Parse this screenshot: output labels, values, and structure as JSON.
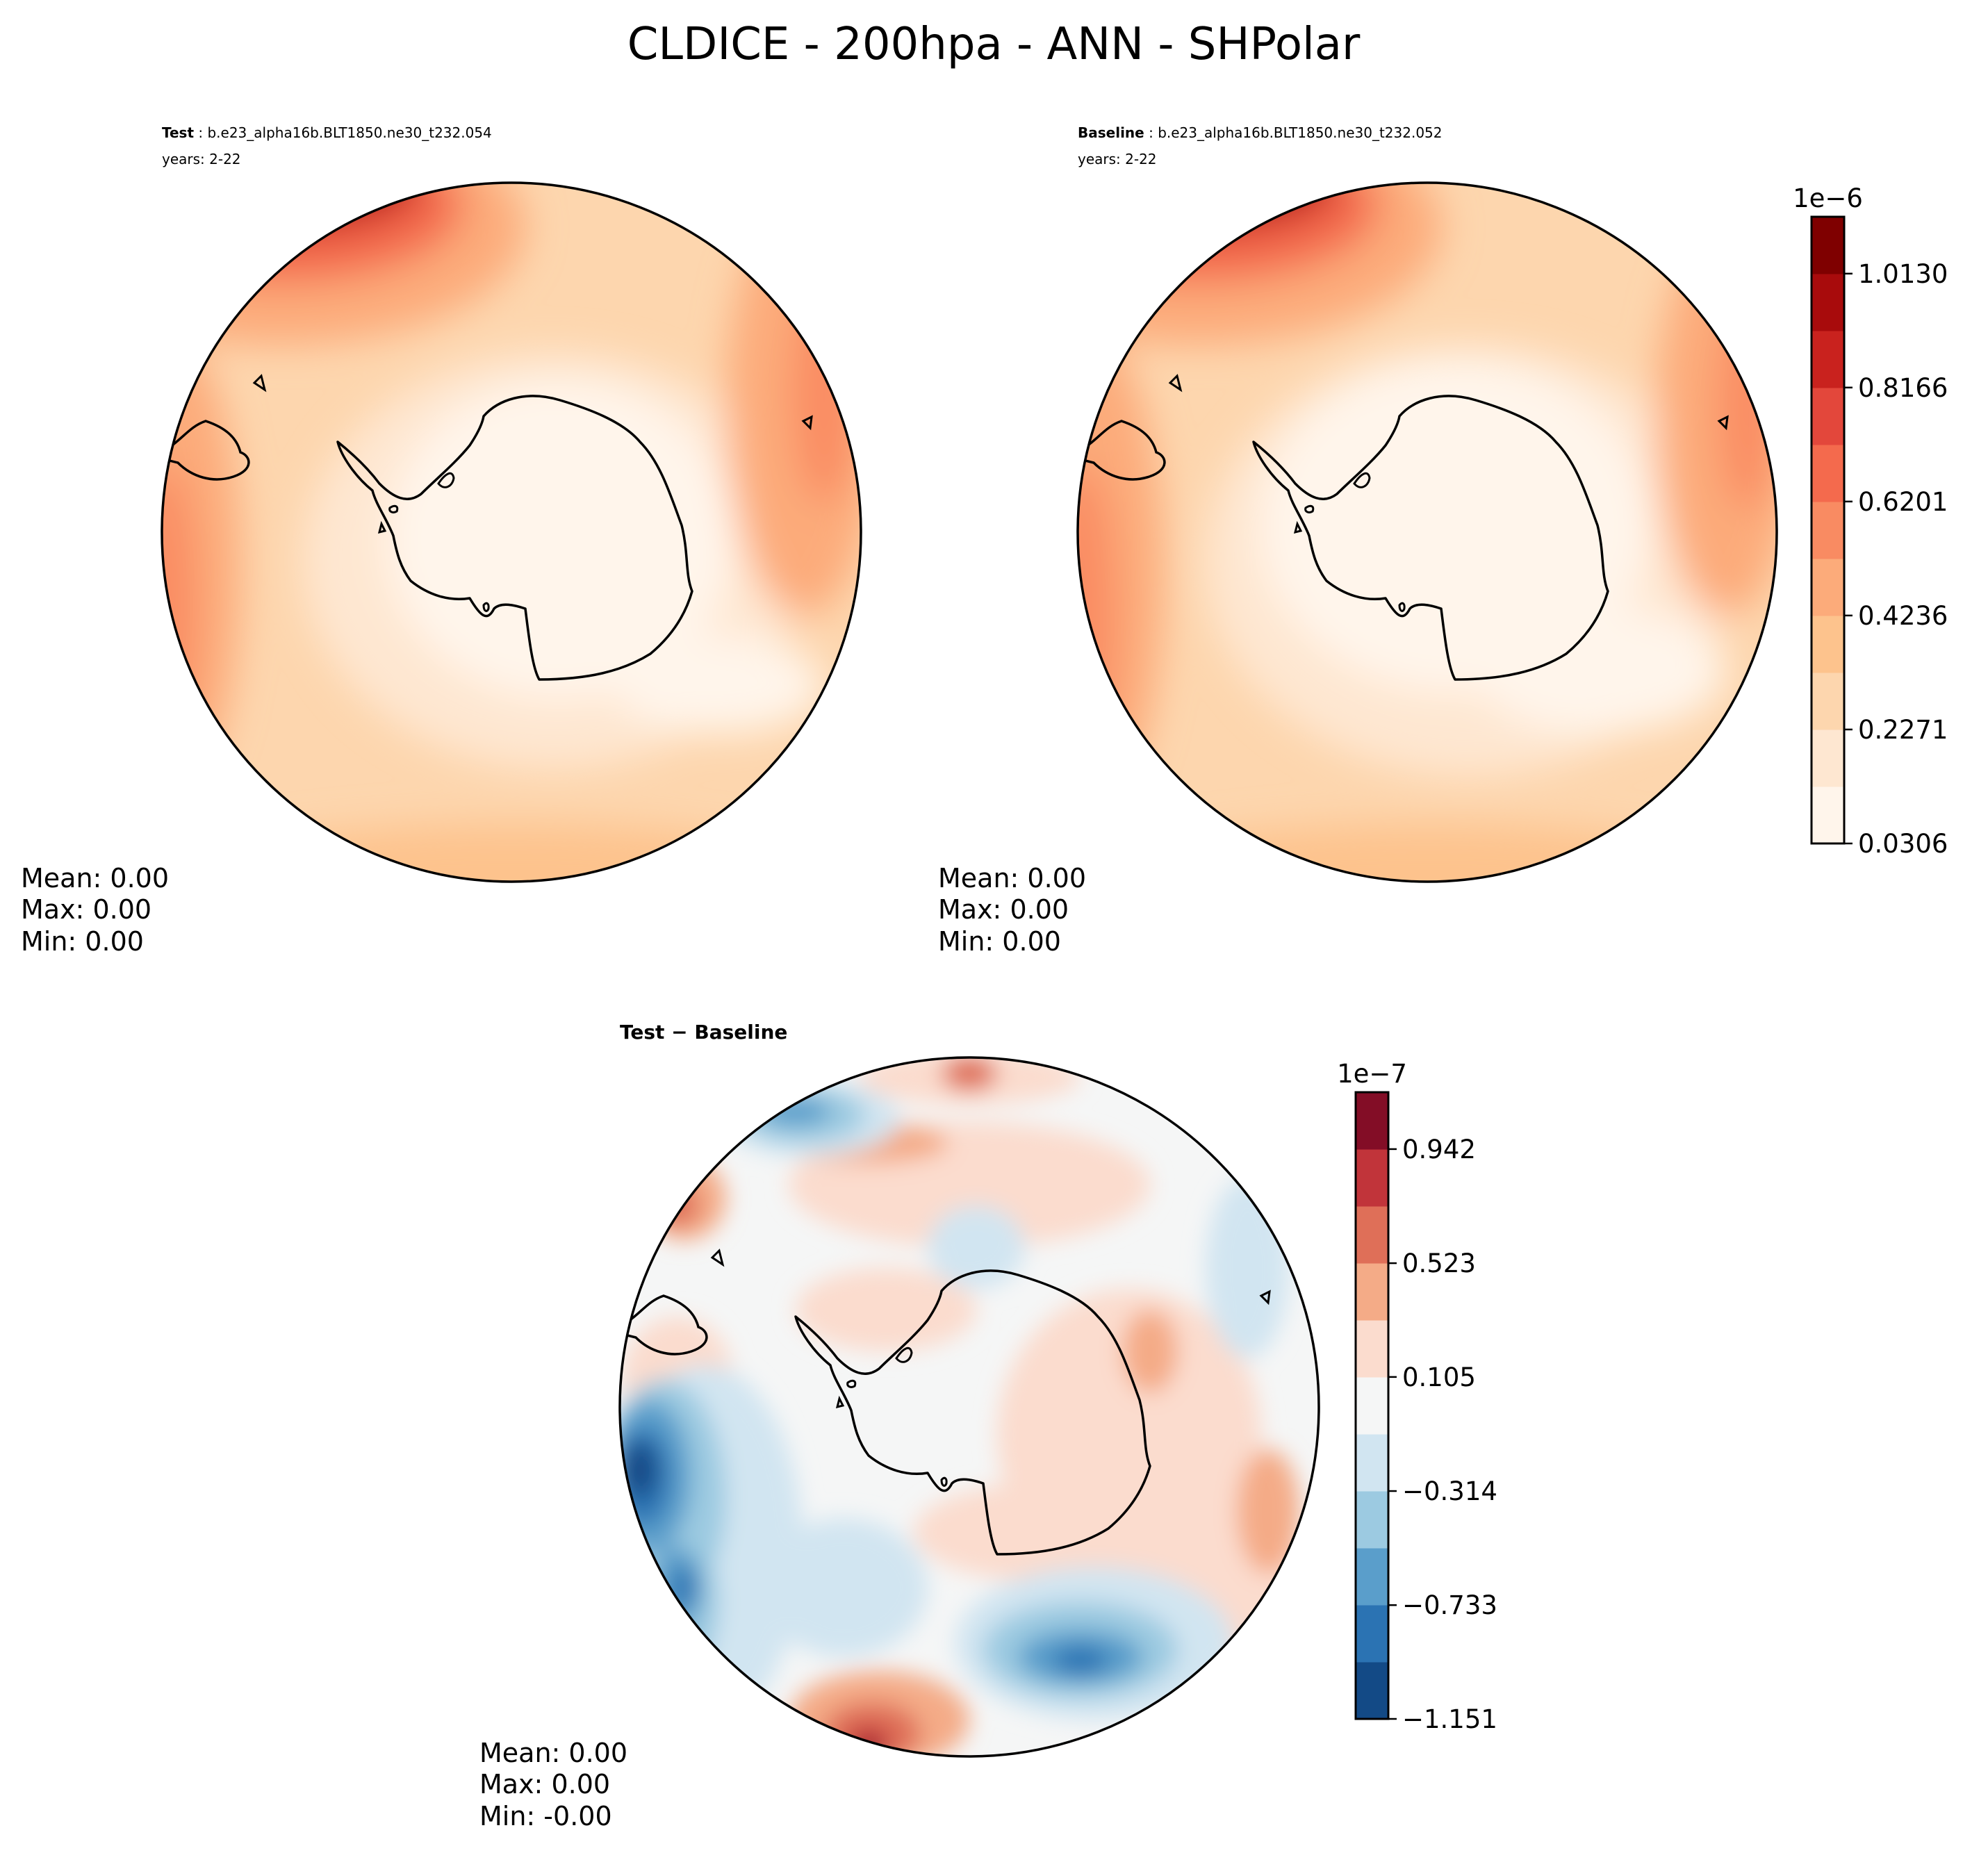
{
  "title": "CLDICE - 200hpa - ANN - SHPolar",
  "colors": {
    "sequential": [
      "#fff5eb",
      "#fee7d1",
      "#fdd6ae",
      "#fdc38d",
      "#fcab7a",
      "#f98b62",
      "#f46a4d",
      "#e3473b",
      "#c9221e",
      "#a80b0c",
      "#7f0000"
    ],
    "diverging": [
      "#134a86",
      "#2b73b3",
      "#5a9ecb",
      "#9ccae1",
      "#d1e5f1",
      "#f5f6f6",
      "#fbdcce",
      "#f4ab87",
      "#df6f58",
      "#c1343a",
      "#830d26"
    ],
    "coastline": "#000000"
  },
  "chart_data": [
    {
      "type": "heatmap",
      "projection": "south-polar-stereographic",
      "panel_label": "Test",
      "case_name": "b.e23_alpha16b.BLT1850.ne30_t232.054",
      "years_label": "years: 2-22",
      "stats": [
        "Mean:  0.00",
        "Max:  0.00",
        "Min:  0.00"
      ],
      "field_description": "Ice cloud amount, highest (~1.05e-6) near the outer edge at upper-left, moderate band along the right edge, lowest (~0.03e-6) over Antarctica"
    },
    {
      "type": "heatmap",
      "projection": "south-polar-stereographic",
      "panel_label": "Baseline",
      "case_name": "b.e23_alpha16b.BLT1850.ne30_t232.052",
      "years_label": "years: 2-22",
      "stats": [
        "Mean:  0.00",
        "Max:  0.00",
        "Min:  0.00"
      ],
      "colorbar": {
        "multiplier": "1e−6",
        "tick_labels": [
          "0.0306",
          "0.2271",
          "0.4236",
          "0.6201",
          "0.8166",
          "1.0130"
        ],
        "tick_values": [
          0.0306,
          0.2271,
          0.4236,
          0.6201,
          0.8166,
          1.013
        ],
        "range": [
          0.0306,
          1.111
        ],
        "n_levels": 11
      }
    },
    {
      "type": "heatmap",
      "projection": "south-polar-stereographic",
      "panel_label": "Test − Baseline",
      "stats": [
        "Mean:  0.00",
        "Max:  0.00",
        "Min: -0.00"
      ],
      "colorbar": {
        "multiplier": "1e−7",
        "tick_labels": [
          "−1.151",
          "−0.733",
          "−0.314",
          "0.105",
          "0.523",
          "0.942"
        ],
        "tick_values": [
          -1.151,
          -0.733,
          -0.314,
          0.105,
          0.523,
          0.942
        ],
        "range": [
          -1.151,
          1.151
        ],
        "n_levels": 11
      }
    }
  ]
}
